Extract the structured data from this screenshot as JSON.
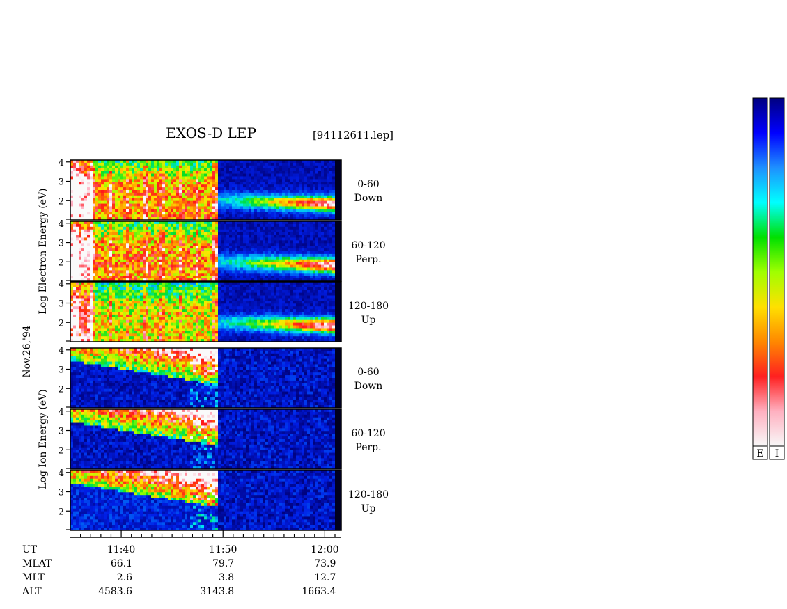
{
  "chart_data": {
    "type": "heatmap",
    "title": "EXOS-D LEP",
    "file_label": "[94112611.lep]",
    "date_label": "Nov.26,'94",
    "groups": [
      {
        "name": "Electron",
        "ylabel": "Log  Electron  Energy (eV)",
        "panels": [
          {
            "id": "e-down",
            "channel": "0-60",
            "direction": "Down"
          },
          {
            "id": "e-perp",
            "channel": "60-120",
            "direction": "Perp."
          },
          {
            "id": "e-up",
            "channel": "120-180",
            "direction": "Up"
          }
        ]
      },
      {
        "name": "Ion",
        "ylabel": "Log  Ion  Energy (eV)",
        "panels": [
          {
            "id": "i-down",
            "channel": "0-60",
            "direction": "Down"
          },
          {
            "id": "i-perp",
            "channel": "60-120",
            "direction": "Perp."
          },
          {
            "id": "i-up",
            "channel": "120-180",
            "direction": "Up"
          }
        ]
      }
    ],
    "y_ticks": [
      "2",
      "3",
      "4"
    ],
    "y_range": [
      1,
      4.1
    ],
    "x_range_min": [
      695.0,
      721.0
    ],
    "x_ticks": [
      {
        "label": "11:40",
        "minute": 700
      },
      {
        "label": "11:50",
        "minute": 710
      },
      {
        "label": "12:00",
        "minute": 720
      }
    ],
    "ephemeris": {
      "labels": [
        "UT",
        "MLAT",
        "MLT",
        "ALT"
      ],
      "columns": [
        {
          "minute": 700,
          "values": [
            "11:40",
            "66.1",
            "2.6",
            "4583.6"
          ]
        },
        {
          "minute": 710,
          "values": [
            "11:50",
            "79.7",
            "3.8",
            "3143.8"
          ]
        },
        {
          "minute": 720,
          "values": [
            "12:00",
            "73.9",
            "12.7",
            "1663.4"
          ]
        }
      ]
    },
    "colorbar": {
      "labels": [
        "E",
        "I"
      ],
      "colors": [
        "#f8f8f8",
        "#ffb0c0",
        "#ff2020",
        "#ff8800",
        "#ffe000",
        "#a0ff00",
        "#00e000",
        "#00ffff",
        "#1e90ff",
        "#0000ff",
        "#000080"
      ]
    }
  }
}
